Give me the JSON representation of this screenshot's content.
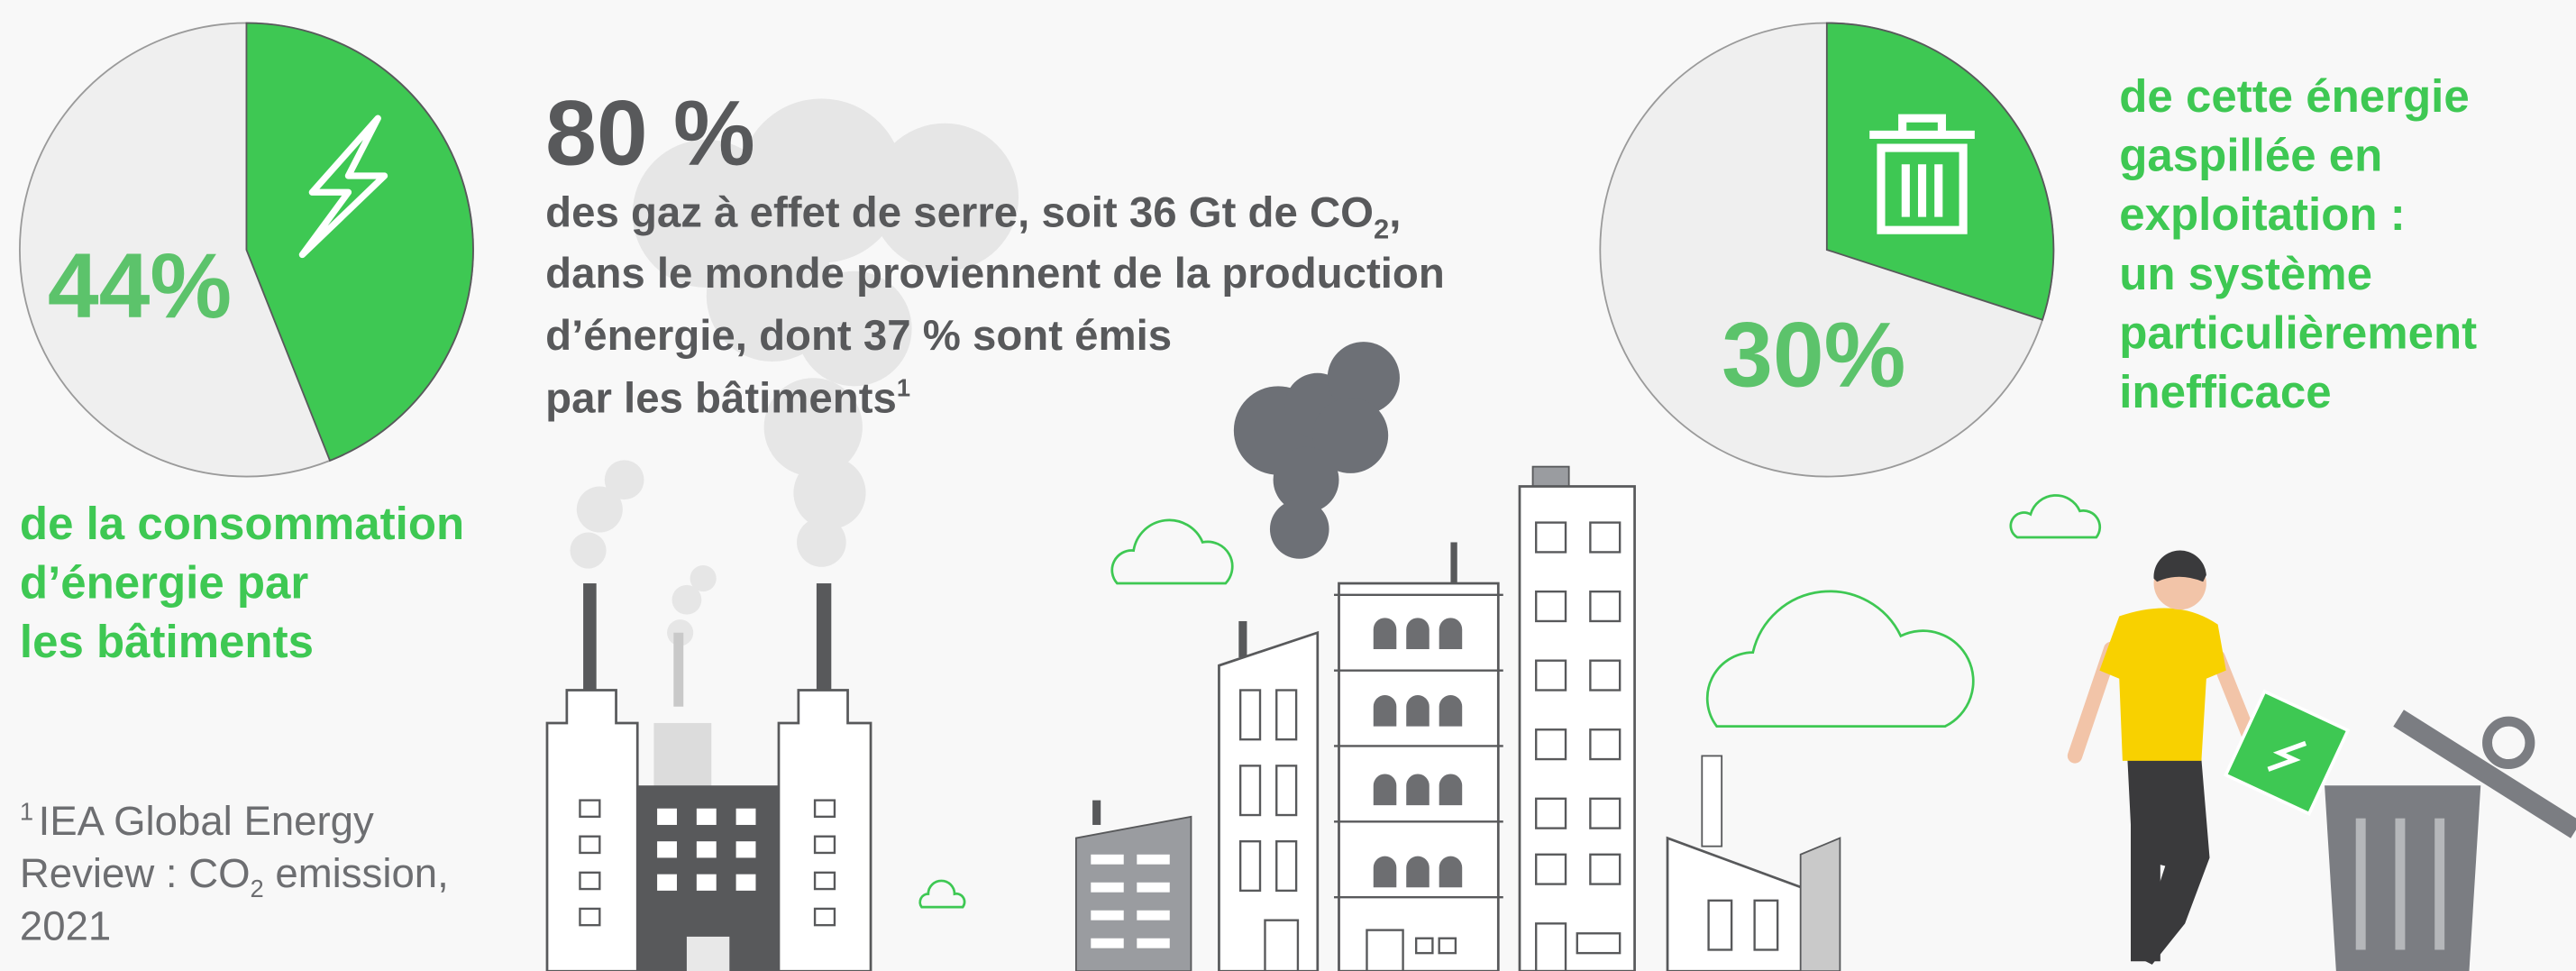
{
  "pies": [
    {
      "values": [
        44
      ],
      "value_labels": [
        "44%"
      ],
      "caption": [
        "de la consommation",
        "d’énergie par",
        "les bâtiments"
      ]
    },
    {
      "values": [
        30
      ],
      "value_labels": [
        "30%"
      ],
      "caption": [
        "de cette énergie",
        "gaspillée en",
        "exploitation :",
        "un système",
        "particulièrement",
        "inefficace"
      ]
    }
  ],
  "headline": {
    "big": "80 %",
    "lines": [
      [
        "des gaz à effet de serre, soit 36 Gt de CO",
        "2",
        ","
      ],
      [
        "dans le monde proviennent de la production"
      ],
      [
        "d’énergie, dont 37 % sont émis"
      ],
      [
        "par les bâtiments",
        "1"
      ]
    ]
  },
  "footnote": [
    [
      "1",
      "IEA Global Energy"
    ],
    [
      "Review : CO",
      "2",
      " emission,"
    ],
    [
      "2021"
    ]
  ]
}
